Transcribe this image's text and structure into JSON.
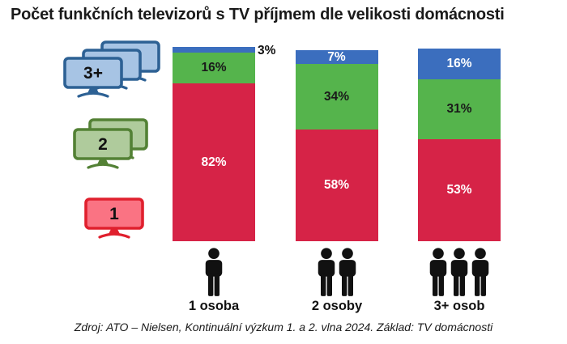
{
  "title": "Počet funkčních televizorů s TV příjmem dle velikosti domácnosti",
  "source_note": "Zdroj: ATO – Nielsen, Kontinuální výzkum 1. a 2. vlna 2024. Základ: TV domácnosti",
  "legend": {
    "items": [
      {
        "label": "3+",
        "tv_count": 3,
        "fill": "#A7C4E4",
        "stroke": "#2D6194"
      },
      {
        "label": "2",
        "tv_count": 2,
        "fill": "#AFCB9C",
        "stroke": "#538135"
      },
      {
        "label": "1",
        "tv_count": 1,
        "fill": "#FA7383",
        "stroke": "#E0202E"
      }
    ]
  },
  "chart_data": {
    "type": "bar",
    "stacked": true,
    "unit": "%",
    "categories": [
      "1 osoba",
      "2 osoby",
      "3+ osob"
    ],
    "series": [
      {
        "name": "1",
        "color": "#D62347",
        "label_color": "#FFFFFF",
        "values": [
          82,
          58,
          53
        ]
      },
      {
        "name": "2",
        "color": "#55B44C",
        "label_color": "#1A1A1A",
        "values": [
          16,
          34,
          31
        ]
      },
      {
        "name": "3+",
        "color": "#3B6EBE",
        "label_color": "#FFFFFF",
        "values": [
          3,
          7,
          16
        ]
      }
    ],
    "ylim": [
      0,
      101
    ],
    "value_labels": true,
    "legend_position": "left",
    "xlabel": "",
    "ylabel": ""
  }
}
